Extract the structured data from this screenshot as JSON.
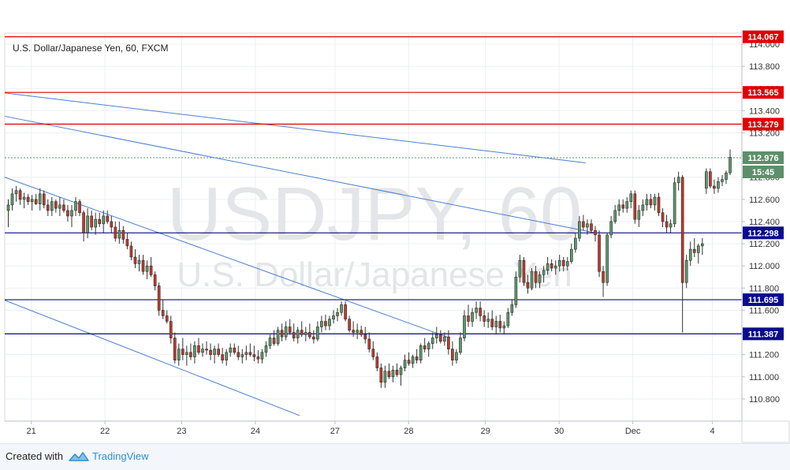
{
  "chart_data": {
    "type": "candlestick",
    "title": "U.S. Dollar/Japanese Yen, 60, FXCM",
    "watermark": {
      "symbol": "USDJPY, 60",
      "name": "U.S. Dollar/Japanese Yen"
    },
    "ylim": [
      110.6,
      114.1
    ],
    "xlim": [
      0,
      250
    ],
    "y_ticks": [
      "114.000",
      "113.800",
      "113.600",
      "113.400",
      "113.200",
      "113.000",
      "112.800",
      "112.600",
      "112.400",
      "112.200",
      "112.000",
      "111.800",
      "111.600",
      "111.400",
      "111.200",
      "111.000",
      "110.800"
    ],
    "x_ticks": [
      {
        "label": "21",
        "x": 9
      },
      {
        "label": "22",
        "x": 34
      },
      {
        "label": "23",
        "x": 60
      },
      {
        "label": "24",
        "x": 85
      },
      {
        "label": "27",
        "x": 112
      },
      {
        "label": "28",
        "x": 137
      },
      {
        "label": "29",
        "x": 163
      },
      {
        "label": "30",
        "x": 188
      },
      {
        "label": "Dec",
        "x": 213
      },
      {
        "label": "4",
        "x": 240
      }
    ],
    "horizontal_levels": [
      {
        "value": 114.067,
        "label": "114.067",
        "color": "#e00000"
      },
      {
        "value": 113.565,
        "label": "113.565",
        "color": "#e00000"
      },
      {
        "value": 113.279,
        "label": "113.279",
        "color": "#e00000"
      },
      {
        "value": 112.298,
        "label": "112.298",
        "color": "#0b0b8f"
      },
      {
        "value": 111.695,
        "label": "111.695",
        "color": "#0b0b8f"
      },
      {
        "value": 111.387,
        "label": "111.387",
        "color": "#0b0b8f"
      }
    ],
    "current_price": {
      "value": 112.976,
      "label": "112.976",
      "countdown": "15:45",
      "color": "#5c8f6a"
    },
    "trendlines": [
      {
        "x1": 0,
        "y1": 113.56,
        "x2": 197,
        "y2": 112.93
      },
      {
        "x1": 0,
        "y1": 113.35,
        "x2": 200,
        "y2": 112.3
      },
      {
        "x1": 0,
        "y1": 112.8,
        "x2": 150,
        "y2": 111.36
      },
      {
        "x1": 0,
        "y1": 111.69,
        "x2": 100,
        "y2": 110.65
      }
    ],
    "ohlc": [
      [
        112.5,
        112.6,
        112.35,
        112.55
      ],
      [
        112.55,
        112.7,
        112.5,
        112.65
      ],
      [
        112.65,
        112.72,
        112.58,
        112.68
      ],
      [
        112.68,
        112.7,
        112.55,
        112.6
      ],
      [
        112.6,
        112.66,
        112.52,
        112.62
      ],
      [
        112.62,
        112.65,
        112.55,
        112.58
      ],
      [
        112.58,
        112.64,
        112.5,
        112.6
      ],
      [
        112.6,
        112.65,
        112.55,
        112.56
      ],
      [
        112.56,
        112.7,
        112.5,
        112.65
      ],
      [
        112.65,
        112.68,
        112.52,
        112.55
      ],
      [
        112.55,
        112.6,
        112.45,
        112.5
      ],
      [
        112.5,
        112.62,
        112.45,
        112.58
      ],
      [
        112.58,
        112.6,
        112.48,
        112.52
      ],
      [
        112.52,
        112.62,
        112.45,
        112.55
      ],
      [
        112.55,
        112.6,
        112.48,
        112.5
      ],
      [
        112.5,
        112.55,
        112.4,
        112.45
      ],
      [
        112.45,
        112.55,
        112.35,
        112.5
      ],
      [
        112.5,
        112.62,
        112.45,
        112.58
      ],
      [
        112.58,
        112.6,
        112.45,
        112.48
      ],
      [
        112.48,
        112.5,
        112.22,
        112.3
      ],
      [
        112.3,
        112.52,
        112.25,
        112.45
      ],
      [
        112.45,
        112.5,
        112.32,
        112.35
      ],
      [
        112.35,
        112.48,
        112.28,
        112.42
      ],
      [
        112.42,
        112.48,
        112.35,
        112.38
      ],
      [
        112.38,
        112.5,
        112.3,
        112.45
      ],
      [
        112.45,
        112.5,
        112.38,
        112.4
      ],
      [
        112.4,
        112.45,
        112.3,
        112.35
      ],
      [
        112.35,
        112.4,
        112.22,
        112.25
      ],
      [
        112.25,
        112.4,
        112.2,
        112.32
      ],
      [
        112.32,
        112.36,
        112.2,
        112.24
      ],
      [
        112.24,
        112.3,
        112.15,
        112.18
      ],
      [
        112.18,
        112.22,
        112.05,
        112.08
      ],
      [
        112.08,
        112.15,
        111.98,
        112.02
      ],
      [
        112.02,
        112.1,
        111.95,
        112.05
      ],
      [
        112.05,
        112.1,
        111.92,
        111.95
      ],
      [
        111.95,
        112.05,
        111.88,
        112.0
      ],
      [
        112.0,
        112.08,
        111.9,
        111.92
      ],
      [
        111.92,
        111.95,
        111.78,
        111.82
      ],
      [
        111.82,
        111.85,
        111.55,
        111.6
      ],
      [
        111.6,
        111.7,
        111.52,
        111.55
      ],
      [
        111.55,
        111.6,
        111.48,
        111.5
      ],
      [
        111.5,
        111.55,
        111.3,
        111.35
      ],
      [
        111.35,
        111.4,
        111.12,
        111.15
      ],
      [
        111.15,
        111.3,
        111.1,
        111.25
      ],
      [
        111.25,
        111.35,
        111.15,
        111.2
      ],
      [
        111.2,
        111.28,
        111.1,
        111.22
      ],
      [
        111.22,
        111.3,
        111.15,
        111.18
      ],
      [
        111.18,
        111.32,
        111.12,
        111.28
      ],
      [
        111.28,
        111.35,
        111.2,
        111.22
      ],
      [
        111.22,
        111.3,
        111.18,
        111.25
      ],
      [
        111.25,
        111.32,
        111.2,
        111.24
      ],
      [
        111.24,
        111.3,
        111.15,
        111.2
      ],
      [
        111.2,
        111.28,
        111.12,
        111.25
      ],
      [
        111.25,
        111.3,
        111.18,
        111.2
      ],
      [
        111.2,
        111.26,
        111.12,
        111.15
      ],
      [
        111.15,
        111.25,
        111.1,
        111.22
      ],
      [
        111.22,
        111.3,
        111.18,
        111.26
      ],
      [
        111.26,
        111.3,
        111.2,
        111.22
      ],
      [
        111.22,
        111.28,
        111.15,
        111.18
      ],
      [
        111.18,
        111.25,
        111.12,
        111.2
      ],
      [
        111.2,
        111.28,
        111.15,
        111.22
      ],
      [
        111.22,
        111.3,
        111.18,
        111.2
      ],
      [
        111.2,
        111.28,
        111.14,
        111.18
      ],
      [
        111.18,
        111.24,
        111.12,
        111.16
      ],
      [
        111.16,
        111.25,
        111.12,
        111.22
      ],
      [
        111.22,
        111.32,
        111.18,
        111.28
      ],
      [
        111.28,
        111.38,
        111.25,
        111.35
      ],
      [
        111.35,
        111.42,
        111.28,
        111.3
      ],
      [
        111.3,
        111.45,
        111.28,
        111.42
      ],
      [
        111.42,
        111.48,
        111.32,
        111.36
      ],
      [
        111.36,
        111.5,
        111.33,
        111.45
      ],
      [
        111.45,
        111.52,
        111.38,
        111.4
      ],
      [
        111.4,
        111.48,
        111.32,
        111.35
      ],
      [
        111.35,
        111.45,
        111.3,
        111.42
      ],
      [
        111.42,
        111.5,
        111.36,
        111.38
      ],
      [
        111.38,
        111.45,
        111.32,
        111.4
      ],
      [
        111.4,
        111.48,
        111.34,
        111.36
      ],
      [
        111.36,
        111.42,
        111.3,
        111.34
      ],
      [
        111.34,
        111.5,
        111.32,
        111.45
      ],
      [
        111.45,
        111.55,
        111.4,
        111.5
      ],
      [
        111.5,
        111.56,
        111.42,
        111.46
      ],
      [
        111.46,
        111.55,
        111.42,
        111.52
      ],
      [
        111.52,
        111.6,
        111.48,
        111.55
      ],
      [
        111.55,
        111.62,
        111.5,
        111.58
      ],
      [
        111.58,
        111.68,
        111.55,
        111.65
      ],
      [
        111.65,
        111.68,
        111.5,
        111.52
      ],
      [
        111.52,
        111.55,
        111.4,
        111.42
      ],
      [
        111.42,
        111.5,
        111.36,
        111.4
      ],
      [
        111.4,
        111.48,
        111.34,
        111.42
      ],
      [
        111.42,
        111.46,
        111.36,
        111.38
      ],
      [
        111.38,
        111.45,
        111.3,
        111.34
      ],
      [
        111.34,
        111.4,
        111.22,
        111.25
      ],
      [
        111.25,
        111.32,
        111.15,
        111.18
      ],
      [
        111.18,
        111.22,
        111.05,
        111.08
      ],
      [
        111.08,
        111.12,
        110.9,
        110.95
      ],
      [
        110.95,
        111.1,
        110.9,
        111.05
      ],
      [
        111.05,
        111.12,
        110.98,
        111.0
      ],
      [
        111.0,
        111.1,
        110.95,
        111.06
      ],
      [
        111.06,
        111.12,
        111.0,
        111.02
      ],
      [
        111.02,
        111.1,
        110.92,
        111.08
      ],
      [
        111.08,
        111.2,
        111.05,
        111.15
      ],
      [
        111.15,
        111.22,
        111.1,
        111.12
      ],
      [
        111.12,
        111.2,
        111.08,
        111.18
      ],
      [
        111.18,
        111.25,
        111.12,
        111.15
      ],
      [
        111.15,
        111.3,
        111.12,
        111.28
      ],
      [
        111.28,
        111.35,
        111.22,
        111.25
      ],
      [
        111.25,
        111.32,
        111.18,
        111.3
      ],
      [
        111.3,
        111.4,
        111.25,
        111.35
      ],
      [
        111.35,
        111.45,
        111.3,
        111.38
      ],
      [
        111.38,
        111.42,
        111.3,
        111.32
      ],
      [
        111.32,
        111.4,
        111.28,
        111.36
      ],
      [
        111.36,
        111.42,
        111.2,
        111.25
      ],
      [
        111.25,
        111.32,
        111.1,
        111.15
      ],
      [
        111.15,
        111.25,
        111.12,
        111.22
      ],
      [
        111.22,
        111.4,
        111.2,
        111.35
      ],
      [
        111.35,
        111.6,
        111.32,
        111.55
      ],
      [
        111.55,
        111.65,
        111.45,
        111.5
      ],
      [
        111.5,
        111.62,
        111.45,
        111.58
      ],
      [
        111.58,
        111.68,
        111.52,
        111.62
      ],
      [
        111.62,
        111.68,
        111.5,
        111.55
      ],
      [
        111.55,
        111.6,
        111.45,
        111.5
      ],
      [
        111.5,
        111.58,
        111.44,
        111.52
      ],
      [
        111.52,
        111.6,
        111.42,
        111.45
      ],
      [
        111.45,
        111.55,
        111.38,
        111.5
      ],
      [
        111.5,
        111.56,
        111.4,
        111.44
      ],
      [
        111.44,
        111.5,
        111.38,
        111.46
      ],
      [
        111.46,
        111.62,
        111.44,
        111.58
      ],
      [
        111.58,
        111.7,
        111.55,
        111.65
      ],
      [
        111.65,
        111.95,
        111.62,
        111.9
      ],
      [
        111.9,
        112.1,
        111.85,
        112.05
      ],
      [
        112.05,
        112.08,
        111.82,
        111.85
      ],
      [
        111.85,
        111.92,
        111.75,
        111.8
      ],
      [
        111.8,
        111.98,
        111.78,
        111.95
      ],
      [
        111.95,
        112.0,
        111.8,
        111.85
      ],
      [
        111.85,
        111.95,
        111.8,
        111.92
      ],
      [
        111.92,
        112.0,
        111.85,
        111.96
      ],
      [
        111.96,
        112.08,
        111.92,
        112.02
      ],
      [
        112.02,
        112.06,
        111.95,
        111.98
      ],
      [
        111.98,
        112.05,
        111.92,
        112.0
      ],
      [
        112.0,
        112.1,
        111.95,
        112.05
      ],
      [
        112.05,
        112.08,
        111.95,
        112.0
      ],
      [
        112.0,
        112.08,
        111.96,
        112.04
      ],
      [
        112.04,
        112.2,
        112.02,
        112.15
      ],
      [
        112.15,
        112.3,
        112.12,
        112.25
      ],
      [
        112.25,
        112.45,
        112.22,
        112.4
      ],
      [
        112.4,
        112.46,
        112.32,
        112.35
      ],
      [
        112.35,
        112.42,
        112.28,
        112.38
      ],
      [
        112.38,
        112.42,
        112.3,
        112.32
      ],
      [
        112.32,
        112.36,
        112.22,
        112.28
      ],
      [
        112.28,
        112.32,
        111.9,
        111.95
      ],
      [
        111.95,
        112.0,
        111.72,
        111.85
      ],
      [
        111.85,
        112.3,
        111.82,
        112.28
      ],
      [
        112.28,
        112.45,
        112.25,
        112.4
      ],
      [
        112.4,
        112.55,
        112.38,
        112.5
      ],
      [
        112.5,
        112.6,
        112.45,
        112.55
      ],
      [
        112.55,
        112.6,
        112.48,
        112.52
      ],
      [
        112.52,
        112.62,
        112.48,
        112.58
      ],
      [
        112.58,
        112.68,
        112.52,
        112.65
      ],
      [
        112.65,
        112.68,
        112.38,
        112.42
      ],
      [
        112.42,
        112.55,
        112.35,
        112.5
      ],
      [
        112.5,
        112.6,
        112.45,
        112.55
      ],
      [
        112.55,
        112.65,
        112.5,
        112.6
      ],
      [
        112.6,
        112.65,
        112.52,
        112.55
      ],
      [
        112.55,
        112.65,
        112.5,
        112.62
      ],
      [
        112.62,
        112.66,
        112.45,
        112.48
      ],
      [
        112.48,
        112.52,
        112.35,
        112.4
      ],
      [
        112.4,
        112.46,
        112.3,
        112.35
      ],
      [
        112.35,
        112.42,
        112.3,
        112.38
      ],
      [
        112.38,
        112.8,
        112.35,
        112.75
      ],
      [
        112.75,
        112.85,
        112.68,
        112.8
      ],
      [
        112.8,
        112.82,
        111.4,
        111.85
      ],
      [
        111.85,
        112.1,
        111.8,
        112.05
      ],
      [
        112.05,
        112.22,
        112.0,
        112.15
      ],
      [
        112.15,
        112.25,
        112.08,
        112.12
      ],
      [
        112.12,
        112.2,
        112.02,
        112.18
      ],
      [
        112.18,
        112.25,
        112.1,
        112.2
      ]
    ],
    "ohlc_last": [
      [
        112.7,
        112.88,
        112.65,
        112.85
      ],
      [
        112.85,
        112.88,
        112.7,
        112.72
      ],
      [
        112.72,
        112.78,
        112.65,
        112.7
      ],
      [
        112.7,
        112.8,
        112.66,
        112.76
      ],
      [
        112.76,
        112.82,
        112.72,
        112.78
      ],
      [
        112.78,
        112.86,
        112.74,
        112.84
      ],
      [
        112.84,
        113.05,
        112.82,
        112.98
      ]
    ]
  },
  "footer": {
    "created_with": "Created with",
    "brand": "TradingView"
  },
  "colors": {
    "up": "#5a9a6a",
    "down": "#c0392b",
    "wick": "#333333",
    "grid": "#eceff3",
    "trend": "#4a7fd0",
    "watermark": "#e3e5e8"
  }
}
